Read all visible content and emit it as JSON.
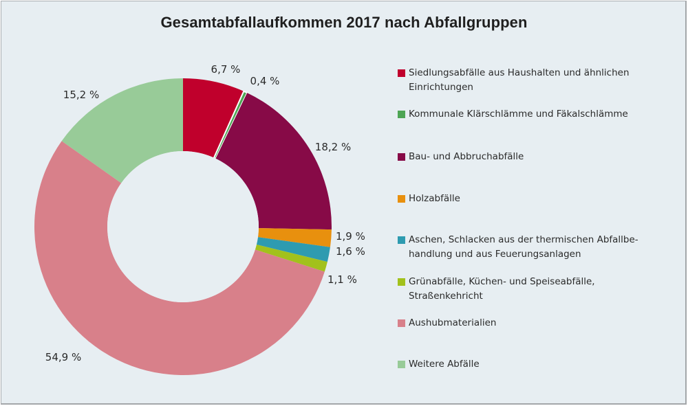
{
  "chart_data": {
    "type": "pie",
    "variant": "donut",
    "title": "Gesamtabfallaufkommen 2017 nach Abfallgruppen",
    "unit": "%",
    "start_angle": "12 o'clock, clockwise",
    "legend_position": "right",
    "slices": [
      {
        "name": "Siedlungsabfälle aus Haushalten und ähnlichen Einrichtungen",
        "value": 6.7,
        "label": "6,7 %",
        "color": "#c0002c"
      },
      {
        "name": "Kommunale Klärschlämme und Fäkalschlämme",
        "value": 0.4,
        "label": "0,4 %",
        "color": "#4ea554"
      },
      {
        "name": "Bau- und Abbruchabfälle",
        "value": 18.2,
        "label": "18,2 %",
        "color": "#870a47"
      },
      {
        "name": "Holzabfälle",
        "value": 1.9,
        "label": "1,9 %",
        "color": "#e8900e"
      },
      {
        "name": "Aschen, Schlacken aus der thermischen Abfallbehandlung und aus Feuerungsanlagen",
        "value": 1.6,
        "label": "1,6 %",
        "color": "#2e9bb0"
      },
      {
        "name": "Grünabfälle, Küchen- und Speiseabfälle, Straßenkehricht",
        "value": 1.1,
        "label": "1,1 %",
        "color": "#a2c11c"
      },
      {
        "name": "Aushubmaterialien",
        "value": 54.9,
        "label": "54,9 %",
        "color": "#d8808a"
      },
      {
        "name": "Weitere Abfälle",
        "value": 15.2,
        "label": "15,2 %",
        "color": "#98cb98"
      }
    ]
  },
  "legend": {
    "items": [
      {
        "text": "Siedlungsabfälle aus Haushalten und ähnlichen\nEinrichtungen",
        "color": "#c0002c"
      },
      {
        "text": "Kommunale Klärschlämme und Fäkalschlämme",
        "color": "#4ea554"
      },
      {
        "text": "Bau- und Abbruchabfälle",
        "color": "#870a47"
      },
      {
        "text": "Holzabfälle",
        "color": "#e8900e"
      },
      {
        "text": "Aschen, Schlacken aus der thermischen Abfallbe-\nhandlung und aus Feuerungsanlagen",
        "color": "#2e9bb0"
      },
      {
        "text": "Grünabfälle, Küchen- und Speiseabfälle,\nStraßenkehricht",
        "color": "#a2c11c"
      },
      {
        "text": "Aushubmaterialien",
        "color": "#d8808a"
      },
      {
        "text": "Weitere Abfälle",
        "color": "#98cb98"
      }
    ]
  }
}
